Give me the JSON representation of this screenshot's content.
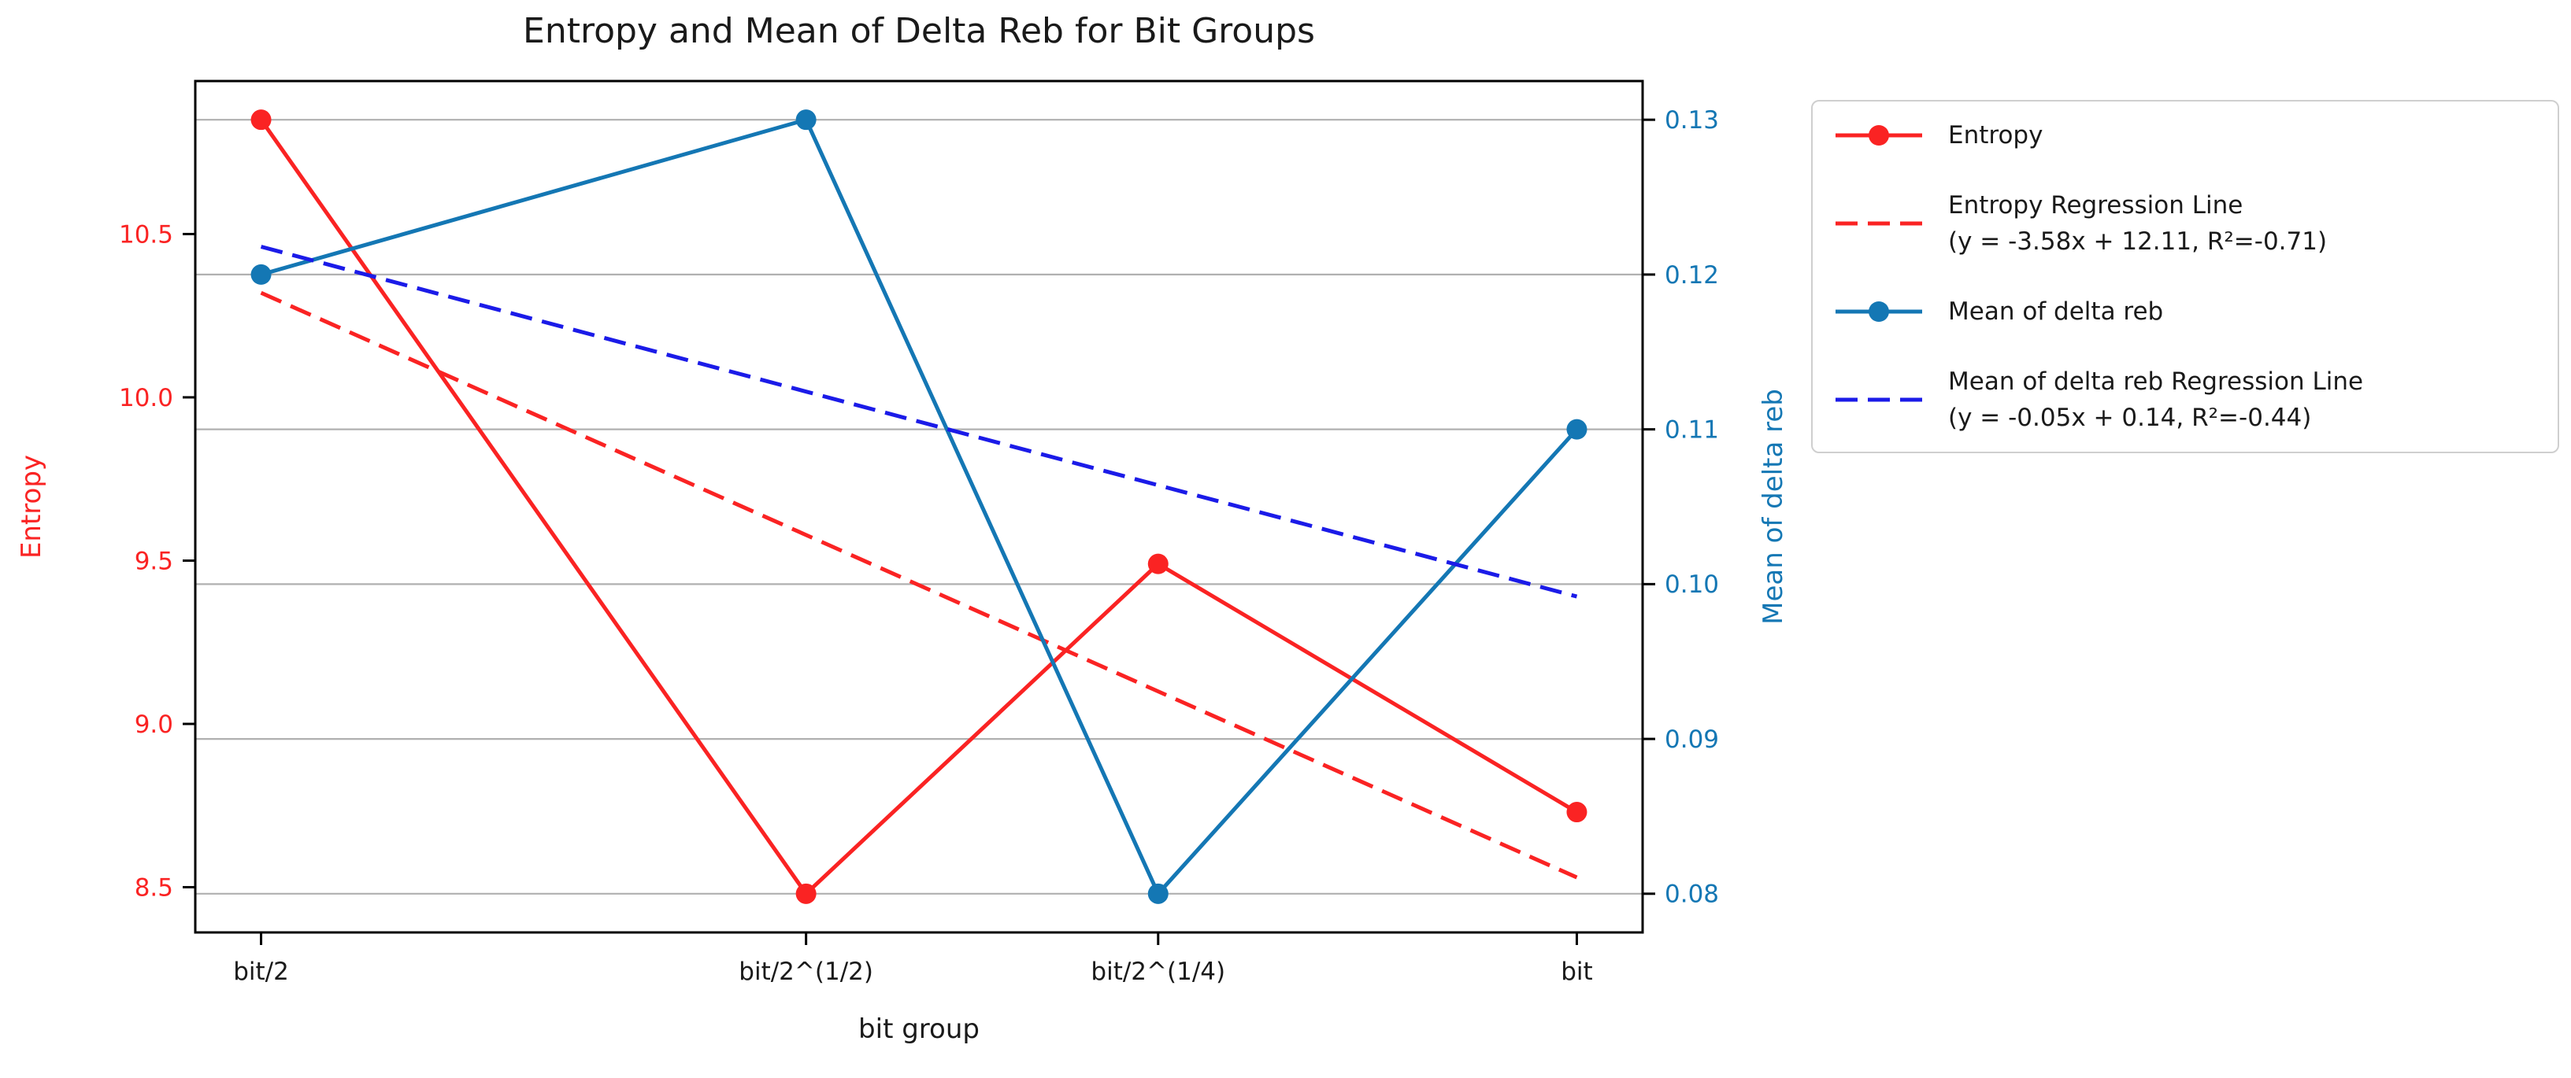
{
  "title": "Entropy and Mean of Delta Reb for Bit Groups",
  "chart_data": {
    "type": "line",
    "title": "Entropy and Mean of Delta Reb for Bit Groups",
    "xlabel": "bit group",
    "x_tick_labels": [
      "bit/2",
      "bit/2^(1/2)",
      "bit/2^(1/4)",
      "bit"
    ],
    "x_values": [
      0.5,
      0.7071,
      0.8409,
      1.0
    ],
    "xlim": [
      0.475,
      1.025
    ],
    "background_color": "#ffffff",
    "grid": {
      "on": true,
      "axis": "right-y",
      "color": "#b0b0b0"
    },
    "spine_color": "#000000",
    "left_axis": {
      "label": "Entropy",
      "color": "#fa2323",
      "lim": [
        8.3615,
        10.9685
      ],
      "ticks": [
        8.5,
        9.0,
        9.5,
        10.0,
        10.5
      ],
      "tick_labels": [
        "8.5",
        "9.0",
        "9.5",
        "10.0",
        "10.5"
      ]
    },
    "right_axis": {
      "label": "Mean of delta reb",
      "color": "#1477b4",
      "lim": [
        0.0775,
        0.1325
      ],
      "ticks": [
        0.08,
        0.09,
        0.1,
        0.11,
        0.12,
        0.13
      ],
      "tick_labels": [
        "0.08",
        "0.09",
        "0.10",
        "0.11",
        "0.12",
        "0.13"
      ]
    },
    "series": [
      {
        "id": "entropy-line",
        "name": "Entropy",
        "axis": "left",
        "style": "solid",
        "marker": true,
        "color": "#fa2323",
        "x": [
          0.5,
          0.7071,
          0.8409,
          1.0
        ],
        "y": [
          10.85,
          8.48,
          9.49,
          8.73
        ]
      },
      {
        "id": "entropy-regression-line",
        "name": "Entropy Regression Line",
        "axis": "left",
        "style": "dashed",
        "marker": false,
        "color": "#fa2323",
        "x": [
          0.5,
          1.0
        ],
        "y": [
          10.32,
          8.53
        ]
      },
      {
        "id": "mean-delta-reb-line",
        "name": "Mean of delta reb",
        "axis": "right",
        "style": "solid",
        "marker": true,
        "color": "#1477b4",
        "x": [
          0.5,
          0.7071,
          0.8409,
          1.0
        ],
        "y": [
          0.12,
          0.13,
          0.08,
          0.11
        ]
      },
      {
        "id": "mean-delta-reb-regression-line",
        "name": "Mean of delta reb Regression Line",
        "axis": "right",
        "style": "dashed",
        "marker": false,
        "color": "#1b1be8",
        "x": [
          0.5,
          1.0
        ],
        "y": [
          0.1218,
          0.0992
        ]
      }
    ],
    "legend": {
      "position": "outside-upper-right",
      "items": [
        {
          "line1": "Entropy"
        },
        {
          "line1": "Entropy Regression Line",
          "line2": "(y = -3.58x + 12.11, R²=-0.71)"
        },
        {
          "line1": "Mean of delta reb"
        },
        {
          "line1": "Mean of delta reb Regression Line",
          "line2": "(y = -0.05x + 0.14, R²=-0.44)"
        }
      ]
    }
  }
}
